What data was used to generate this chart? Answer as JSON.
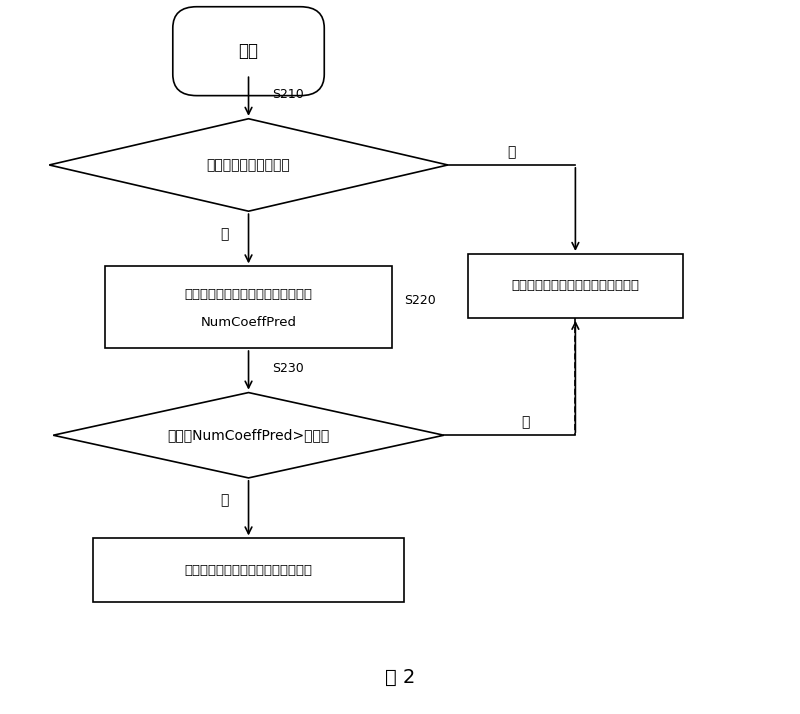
{
  "title": "图 2",
  "bg_color": "#ffffff",
  "start_label": "开始",
  "diamond1_label": "当前编码块为起始块？",
  "diamond1_step": "S210",
  "box1_line1": "获取当前编码块非零系数个数预测值",
  "box1_line2": "NumCoeffPred",
  "box1_step": "S220",
  "diamond2_label": "预测值NumCoeffPred>门限值",
  "diamond2_step": "S230",
  "box2_label": "采用低精度量化矩阵对残差进行量化",
  "box3_label": "采用高精度量化矩阵对残差进行量化",
  "yes_label": "是",
  "no_label": "否",
  "fig_label": "图 2"
}
